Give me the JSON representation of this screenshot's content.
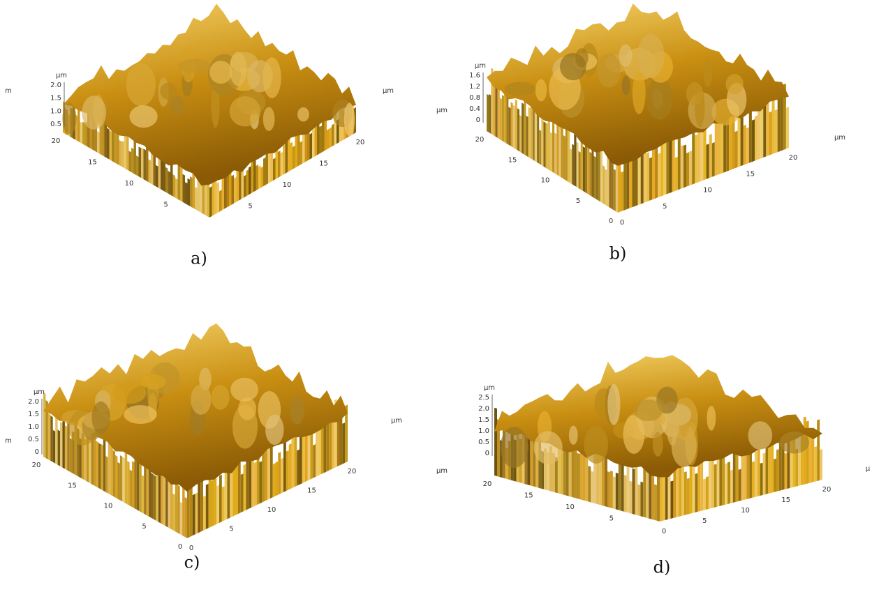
{
  "panels": [
    {
      "caption": "a)",
      "z_unit": "µm",
      "z_ticks": [
        "2.0",
        "1.5",
        "1.0",
        "0.5"
      ],
      "left_ticks": [
        20,
        15,
        10,
        5
      ],
      "right_ticks": [
        5,
        10,
        15,
        20
      ],
      "side_labels": [
        "m",
        "µm"
      ]
    },
    {
      "caption": "b)",
      "z_unit": "µm",
      "z_ticks": [
        "1.6",
        "1.2",
        "0.8",
        "0.4",
        "0"
      ],
      "left_ticks": [
        20,
        15,
        10,
        5,
        0
      ],
      "right_ticks": [
        0,
        5,
        10,
        15,
        20
      ],
      "side_labels": [
        "µm",
        "µm"
      ]
    },
    {
      "caption": "c)",
      "z_unit": "µm",
      "z_ticks": [
        "2.0",
        "1.5",
        "1.0",
        "0.5",
        "0"
      ],
      "left_ticks": [
        20,
        15,
        10,
        5,
        0
      ],
      "right_ticks": [
        0,
        5,
        10,
        15,
        20
      ],
      "side_labels": [
        "m",
        "µm"
      ]
    },
    {
      "caption": "d)",
      "z_unit": "µm",
      "z_ticks": [
        "2.5",
        "2.0",
        "1.5",
        "1.0",
        "0.5",
        "0"
      ],
      "left_ticks": [
        20,
        15,
        10,
        5
      ],
      "right_ticks": [
        0,
        5,
        10,
        15,
        20
      ],
      "side_labels": [
        "µm",
        "µ"
      ]
    }
  ]
}
